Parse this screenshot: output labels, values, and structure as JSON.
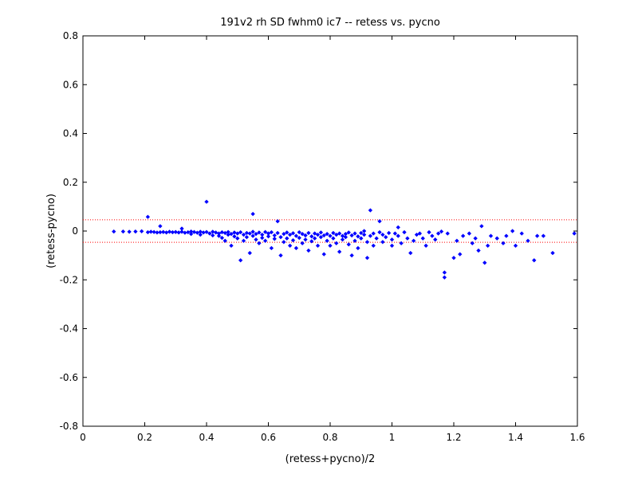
{
  "chart_data": {
    "type": "scatter",
    "title": "191v2 rh SD fwhm0 ic7 -- retess vs. pycno",
    "xlabel": "(retess+pycno)/2",
    "ylabel": "(retess-pycno)",
    "xlim": [
      0,
      1.6
    ],
    "ylim": [
      -0.8,
      0.8
    ],
    "xticks": [
      "0",
      "0.2",
      "0.4",
      "0.6",
      "0.8",
      "1",
      "1.2",
      "1.4",
      "1.6"
    ],
    "yticks": [
      "0.8",
      "0.6",
      "0.4",
      "0.2",
      "0",
      "-0.2",
      "-0.4",
      "-0.6",
      "-0.8"
    ],
    "grid": false,
    "marker_color": "#0000ff",
    "reference_lines": [
      {
        "y": 0.046,
        "style": "dotted",
        "color": "#ff0000"
      },
      {
        "y": -0.046,
        "style": "dotted",
        "color": "#ff0000"
      }
    ],
    "points": [
      [
        0.1,
        -0.002
      ],
      [
        0.13,
        -0.002
      ],
      [
        0.15,
        -0.003
      ],
      [
        0.17,
        -0.002
      ],
      [
        0.19,
        -0.001
      ],
      [
        0.21,
        0.058
      ],
      [
        0.21,
        -0.005
      ],
      [
        0.22,
        -0.003
      ],
      [
        0.23,
        -0.004
      ],
      [
        0.24,
        -0.006
      ],
      [
        0.25,
        0.02
      ],
      [
        0.25,
        -0.005
      ],
      [
        0.26,
        -0.004
      ],
      [
        0.27,
        -0.006
      ],
      [
        0.28,
        -0.003
      ],
      [
        0.29,
        -0.005
      ],
      [
        0.3,
        -0.004
      ],
      [
        0.31,
        -0.006
      ],
      [
        0.32,
        0.01
      ],
      [
        0.32,
        -0.003
      ],
      [
        0.33,
        -0.007
      ],
      [
        0.34,
        -0.005
      ],
      [
        0.35,
        -0.002
      ],
      [
        0.35,
        -0.012
      ],
      [
        0.36,
        -0.004
      ],
      [
        0.37,
        -0.007
      ],
      [
        0.38,
        -0.003
      ],
      [
        0.38,
        -0.015
      ],
      [
        0.39,
        -0.006
      ],
      [
        0.4,
        0.12
      ],
      [
        0.4,
        -0.004
      ],
      [
        0.41,
        -0.01
      ],
      [
        0.42,
        -0.003
      ],
      [
        0.42,
        -0.018
      ],
      [
        0.43,
        -0.006
      ],
      [
        0.44,
        -0.01
      ],
      [
        0.44,
        -0.02
      ],
      [
        0.45,
        -0.005
      ],
      [
        0.45,
        -0.028
      ],
      [
        0.46,
        -0.008
      ],
      [
        0.46,
        -0.04
      ],
      [
        0.47,
        -0.004
      ],
      [
        0.47,
        -0.015
      ],
      [
        0.48,
        -0.012
      ],
      [
        0.48,
        -0.06
      ],
      [
        0.49,
        -0.006
      ],
      [
        0.49,
        -0.022
      ],
      [
        0.5,
        -0.01
      ],
      [
        0.5,
        -0.03
      ],
      [
        0.51,
        -0.12
      ],
      [
        0.51,
        -0.005
      ],
      [
        0.52,
        -0.015
      ],
      [
        0.52,
        -0.04
      ],
      [
        0.53,
        -0.008
      ],
      [
        0.53,
        -0.025
      ],
      [
        0.54,
        -0.01
      ],
      [
        0.54,
        -0.09
      ],
      [
        0.55,
        0.07
      ],
      [
        0.55,
        -0.003
      ],
      [
        0.55,
        -0.02
      ],
      [
        0.56,
        -0.012
      ],
      [
        0.56,
        -0.035
      ],
      [
        0.57,
        -0.006
      ],
      [
        0.57,
        -0.05
      ],
      [
        0.58,
        -0.015
      ],
      [
        0.58,
        -0.028
      ],
      [
        0.59,
        -0.004
      ],
      [
        0.59,
        -0.04
      ],
      [
        0.6,
        -0.01
      ],
      [
        0.6,
        -0.022
      ],
      [
        0.61,
        -0.07
      ],
      [
        0.61,
        -0.005
      ],
      [
        0.62,
        -0.018
      ],
      [
        0.62,
        -0.032
      ],
      [
        0.63,
        0.04
      ],
      [
        0.63,
        -0.008
      ],
      [
        0.64,
        -0.025
      ],
      [
        0.64,
        -0.1
      ],
      [
        0.65,
        -0.012
      ],
      [
        0.65,
        -0.045
      ],
      [
        0.66,
        -0.006
      ],
      [
        0.66,
        -0.03
      ],
      [
        0.67,
        -0.015
      ],
      [
        0.67,
        -0.06
      ],
      [
        0.68,
        -0.009
      ],
      [
        0.68,
        -0.038
      ],
      [
        0.69,
        -0.02
      ],
      [
        0.69,
        -0.07
      ],
      [
        0.7,
        -0.005
      ],
      [
        0.7,
        -0.028
      ],
      [
        0.71,
        -0.012
      ],
      [
        0.71,
        -0.05
      ],
      [
        0.72,
        -0.018
      ],
      [
        0.72,
        -0.035
      ],
      [
        0.73,
        -0.008
      ],
      [
        0.73,
        -0.08
      ],
      [
        0.74,
        -0.022
      ],
      [
        0.74,
        -0.042
      ],
      [
        0.75,
        -0.01
      ],
      [
        0.75,
        -0.03
      ],
      [
        0.76,
        -0.015
      ],
      [
        0.76,
        -0.06
      ],
      [
        0.77,
        -0.006
      ],
      [
        0.77,
        -0.025
      ],
      [
        0.78,
        -0.095
      ],
      [
        0.78,
        -0.018
      ],
      [
        0.79,
        -0.012
      ],
      [
        0.79,
        -0.04
      ],
      [
        0.8,
        -0.02
      ],
      [
        0.8,
        -0.06
      ],
      [
        0.81,
        -0.008
      ],
      [
        0.81,
        -0.03
      ],
      [
        0.82,
        -0.015
      ],
      [
        0.82,
        -0.05
      ],
      [
        0.83,
        -0.01
      ],
      [
        0.83,
        -0.085
      ],
      [
        0.84,
        -0.02
      ],
      [
        0.84,
        -0.035
      ],
      [
        0.85,
        -0.012
      ],
      [
        0.85,
        -0.025
      ],
      [
        0.86,
        -0.006
      ],
      [
        0.86,
        -0.055
      ],
      [
        0.87,
        -0.018
      ],
      [
        0.87,
        -0.1
      ],
      [
        0.88,
        -0.01
      ],
      [
        0.88,
        -0.04
      ],
      [
        0.89,
        -0.022
      ],
      [
        0.89,
        -0.07
      ],
      [
        0.9,
        -0.008
      ],
      [
        0.9,
        -0.03
      ],
      [
        0.91,
        -0.015
      ],
      [
        0.91,
        0.0
      ],
      [
        0.92,
        -0.045
      ],
      [
        0.92,
        -0.11
      ],
      [
        0.93,
        0.085
      ],
      [
        0.93,
        -0.02
      ],
      [
        0.94,
        -0.01
      ],
      [
        0.94,
        -0.06
      ],
      [
        0.95,
        -0.03
      ],
      [
        0.96,
        0.04
      ],
      [
        0.96,
        -0.005
      ],
      [
        0.97,
        -0.015
      ],
      [
        0.97,
        -0.045
      ],
      [
        0.98,
        -0.025
      ],
      [
        0.99,
        -0.008
      ],
      [
        1.0,
        -0.035
      ],
      [
        1.0,
        -0.06
      ],
      [
        1.01,
        -0.01
      ],
      [
        1.02,
        0.015
      ],
      [
        1.02,
        -0.02
      ],
      [
        1.03,
        -0.05
      ],
      [
        1.04,
        -0.005
      ],
      [
        1.05,
        -0.03
      ],
      [
        1.06,
        -0.09
      ],
      [
        1.07,
        -0.04
      ],
      [
        1.08,
        -0.015
      ],
      [
        1.09,
        -0.01
      ],
      [
        1.1,
        -0.03
      ],
      [
        1.11,
        -0.06
      ],
      [
        1.12,
        -0.005
      ],
      [
        1.13,
        -0.02
      ],
      [
        1.14,
        -0.035
      ],
      [
        1.15,
        -0.01
      ],
      [
        1.16,
        -0.002
      ],
      [
        1.17,
        -0.17
      ],
      [
        1.17,
        -0.19
      ],
      [
        1.18,
        -0.01
      ],
      [
        1.2,
        -0.11
      ],
      [
        1.21,
        -0.04
      ],
      [
        1.22,
        -0.095
      ],
      [
        1.23,
        -0.02
      ],
      [
        1.25,
        -0.01
      ],
      [
        1.26,
        -0.05
      ],
      [
        1.27,
        -0.03
      ],
      [
        1.28,
        -0.08
      ],
      [
        1.29,
        0.02
      ],
      [
        1.3,
        -0.13
      ],
      [
        1.31,
        -0.06
      ],
      [
        1.32,
        -0.02
      ],
      [
        1.34,
        -0.03
      ],
      [
        1.36,
        -0.05
      ],
      [
        1.37,
        -0.02
      ],
      [
        1.39,
        0.0
      ],
      [
        1.4,
        -0.06
      ],
      [
        1.42,
        -0.01
      ],
      [
        1.44,
        -0.04
      ],
      [
        1.46,
        -0.12
      ],
      [
        1.47,
        -0.02
      ],
      [
        1.49,
        -0.02
      ],
      [
        1.52,
        -0.09
      ],
      [
        1.59,
        -0.01
      ]
    ]
  }
}
